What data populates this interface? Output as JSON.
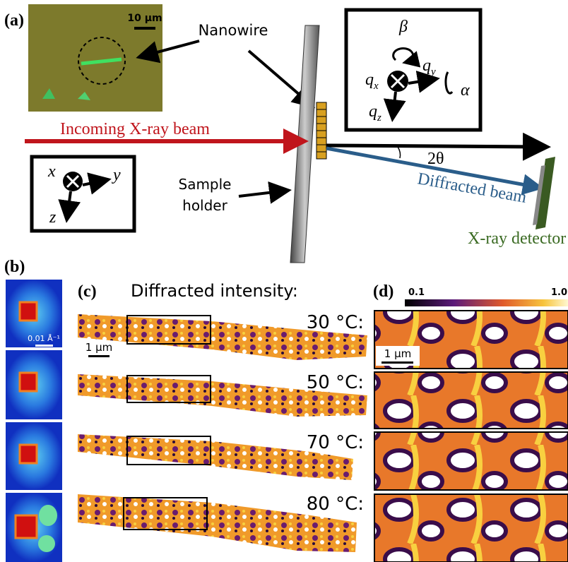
{
  "panel_a": {
    "label": "(a)",
    "micrograph_scale": "10 µm",
    "nanowire": "Nanowire",
    "incoming_beam": "Incoming X-ray beam",
    "sample_holder": [
      "Sample",
      "holder"
    ],
    "diffracted_beam": "Diffracted beam",
    "angle": "2θ",
    "detector": "X-ray detector",
    "reciprocal_axes": {
      "beta": "β",
      "alpha": "α",
      "qx": {
        "symbol": "q",
        "subscript": "x"
      },
      "qy": {
        "symbol": "q",
        "subscript": "y"
      },
      "qz": {
        "symbol": "q",
        "subscript": "z"
      }
    },
    "lab_axes": {
      "x": "x",
      "y": "y",
      "z": "z"
    }
  },
  "panel_b": {
    "label": "(b)",
    "scale": "0.01 Å⁻¹"
  },
  "panel_c": {
    "label": "(c)",
    "title": "Diffracted intensity:",
    "scale": "1 µm",
    "temperatures": [
      "30 °C:",
      "50 °C:",
      "70 °C:",
      "80 °C:"
    ]
  },
  "panel_d": {
    "label": "(d)",
    "colorbar_min": "0.1",
    "colorbar_max": "1.0",
    "scale": "1 µm"
  }
}
